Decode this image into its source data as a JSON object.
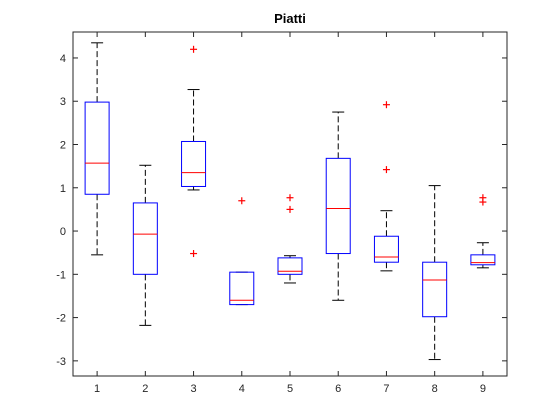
{
  "chart_data": {
    "type": "boxplot",
    "title": "Piatti",
    "xlabel": "",
    "ylabel": "",
    "categories": [
      "1",
      "2",
      "3",
      "4",
      "5",
      "6",
      "7",
      "8",
      "9"
    ],
    "ylim": [
      -3.35,
      4.6
    ],
    "yticks": [
      "-3",
      "-2",
      "-1",
      "0",
      "1",
      "2",
      "3",
      "4"
    ],
    "grid": false,
    "box_color": "#0000ff",
    "median_color": "#ff0000",
    "whisker_color": "#000000",
    "outlier_color": "#ff0000",
    "boxes": [
      {
        "category": "1",
        "whisker_low": -0.55,
        "q1": 0.85,
        "median": 1.57,
        "q3": 2.98,
        "whisker_high": 4.35,
        "outliers": []
      },
      {
        "category": "2",
        "whisker_low": -2.18,
        "q1": -1.0,
        "median": -0.07,
        "q3": 0.65,
        "whisker_high": 1.52,
        "outliers": []
      },
      {
        "category": "3",
        "whisker_low": 0.95,
        "q1": 1.03,
        "median": 1.35,
        "q3": 2.07,
        "whisker_high": 3.27,
        "outliers": [
          4.2,
          -0.52
        ]
      },
      {
        "category": "4",
        "whisker_low": -1.7,
        "q1": -1.7,
        "median": -1.6,
        "q3": -0.95,
        "whisker_high": -0.95,
        "outliers": [
          0.7
        ]
      },
      {
        "category": "5",
        "whisker_low": -1.2,
        "q1": -1.0,
        "median": -0.93,
        "q3": -0.62,
        "whisker_high": -0.57,
        "outliers": [
          0.77,
          0.5
        ]
      },
      {
        "category": "6",
        "whisker_low": -1.6,
        "q1": -0.52,
        "median": 0.52,
        "q3": 1.68,
        "whisker_high": 2.75,
        "outliers": []
      },
      {
        "category": "7",
        "whisker_low": -0.92,
        "q1": -0.72,
        "median": -0.6,
        "q3": -0.12,
        "whisker_high": 0.47,
        "outliers": [
          2.92,
          1.42
        ]
      },
      {
        "category": "8",
        "whisker_low": -2.97,
        "q1": -1.98,
        "median": -1.13,
        "q3": -0.72,
        "whisker_high": 1.05,
        "outliers": []
      },
      {
        "category": "9",
        "whisker_low": -0.85,
        "q1": -0.78,
        "median": -0.73,
        "q3": -0.55,
        "whisker_high": -0.27,
        "outliers": [
          0.77,
          0.67
        ]
      }
    ]
  }
}
